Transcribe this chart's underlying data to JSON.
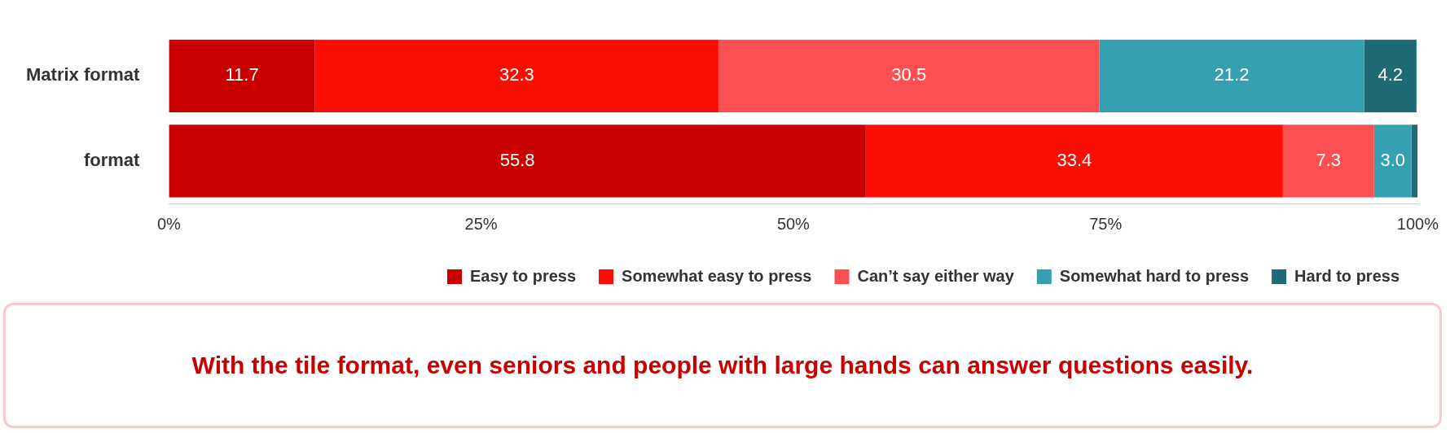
{
  "chart_data": {
    "type": "bar",
    "orientation": "horizontal",
    "stacked": true,
    "categories": [
      "Matrix format",
      "format"
    ],
    "series": [
      {
        "name": "Easy to press",
        "color": "#c80000",
        "values": [
          11.7,
          55.8
        ],
        "value_labels": [
          "11.7",
          "55.8"
        ]
      },
      {
        "name": "Somewhat easy to press",
        "color": "#f90d05",
        "values": [
          32.3,
          33.4
        ],
        "value_labels": [
          "32.3",
          "33.4"
        ]
      },
      {
        "name": "Can’t say either way",
        "color": "#fc4f52",
        "values": [
          30.5,
          7.3
        ],
        "value_labels": [
          "30.5",
          "7.3"
        ]
      },
      {
        "name": "Somewhat hard to press",
        "color": "#35a0b0",
        "values": [
          21.2,
          3.0
        ],
        "value_labels": [
          "21.2",
          "3.0"
        ]
      },
      {
        "name": "Hard to press",
        "color": "#1f6b75",
        "values": [
          4.2,
          0.5
        ],
        "value_labels": [
          "4.2",
          null
        ]
      }
    ],
    "xlim": [
      0,
      100
    ],
    "xticks": [
      {
        "value": 0,
        "label": "0%"
      },
      {
        "value": 25,
        "label": "25%"
      },
      {
        "value": 50,
        "label": "50%"
      },
      {
        "value": 75,
        "label": "75%"
      },
      {
        "value": 100,
        "label": "100%"
      }
    ],
    "legend": "bottom right",
    "annotations": [
      "With the tile format, even seniors and people with large hands can answer questions easily."
    ]
  }
}
